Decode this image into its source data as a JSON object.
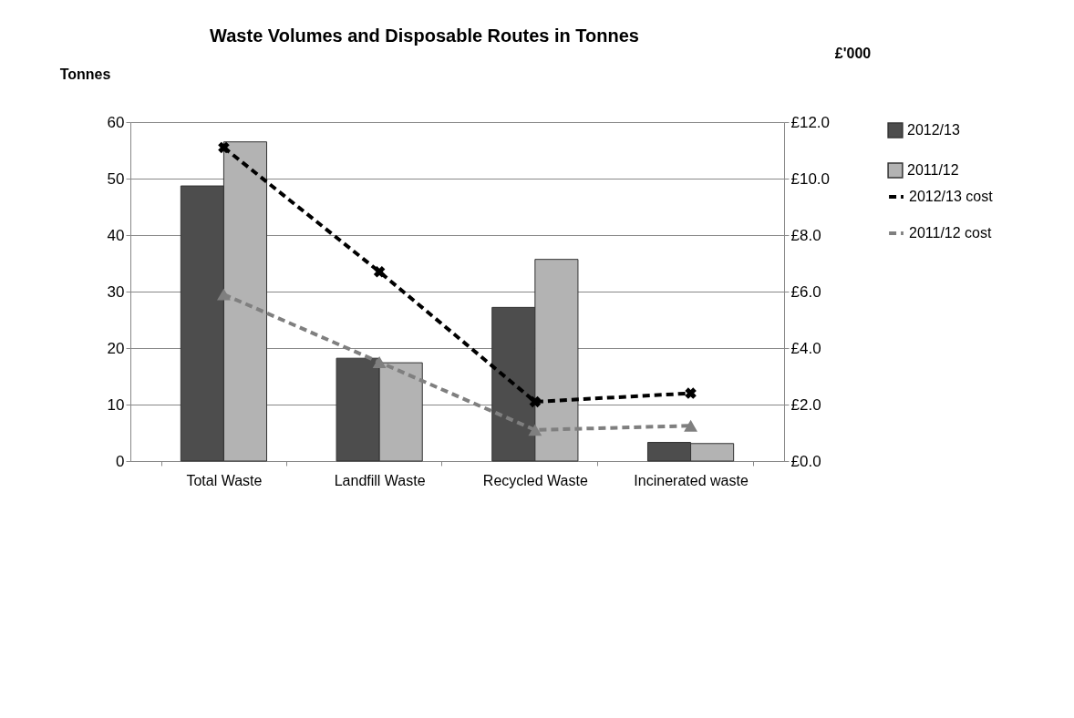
{
  "chart_data": {
    "type": "bar",
    "title": "Waste Volumes and Disposable Routes in Tonnes",
    "ylabel": "Tonnes",
    "y2label": "£'000",
    "categories": [
      "Total Waste",
      "Landfill Waste",
      "Recycled Waste",
      "Incinerated waste"
    ],
    "series": [
      {
        "name": "2012/13",
        "color": "#4d4d4d",
        "values": [
          48.7,
          18.2,
          27.2,
          3.3
        ]
      },
      {
        "name": "2011/12",
        "color": "#b3b3b3",
        "values": [
          56.5,
          17.4,
          35.7,
          3.1
        ]
      },
      {
        "name": "2012/13 cost",
        "type": "line",
        "axis": "y2",
        "color": "#000000",
        "marker": "cross",
        "line_style": "dashed",
        "values": [
          11.1,
          6.7,
          2.1,
          2.4
        ]
      },
      {
        "name": "2011/12 cost",
        "type": "line",
        "axis": "y2",
        "color": "#7f7f7f",
        "marker": "triangle",
        "line_style": "dashed",
        "values": [
          5.9,
          3.5,
          1.1,
          1.25
        ]
      }
    ],
    "ylim": [
      0,
      60
    ],
    "yticks": [
      0,
      10,
      20,
      30,
      40,
      50,
      60
    ],
    "y2lim": [
      0,
      12
    ],
    "y2ticks": [
      {
        "value": 0,
        "label": "£0.0"
      },
      {
        "value": 2,
        "label": "£2.0"
      },
      {
        "value": 4,
        "label": "£4.0"
      },
      {
        "value": 6,
        "label": "£6.0"
      },
      {
        "value": 8,
        "label": "£8.0"
      },
      {
        "value": 10,
        "label": "£10.0"
      },
      {
        "value": 12,
        "label": "£12.0"
      }
    ],
    "grid": "y",
    "legend": "right"
  }
}
